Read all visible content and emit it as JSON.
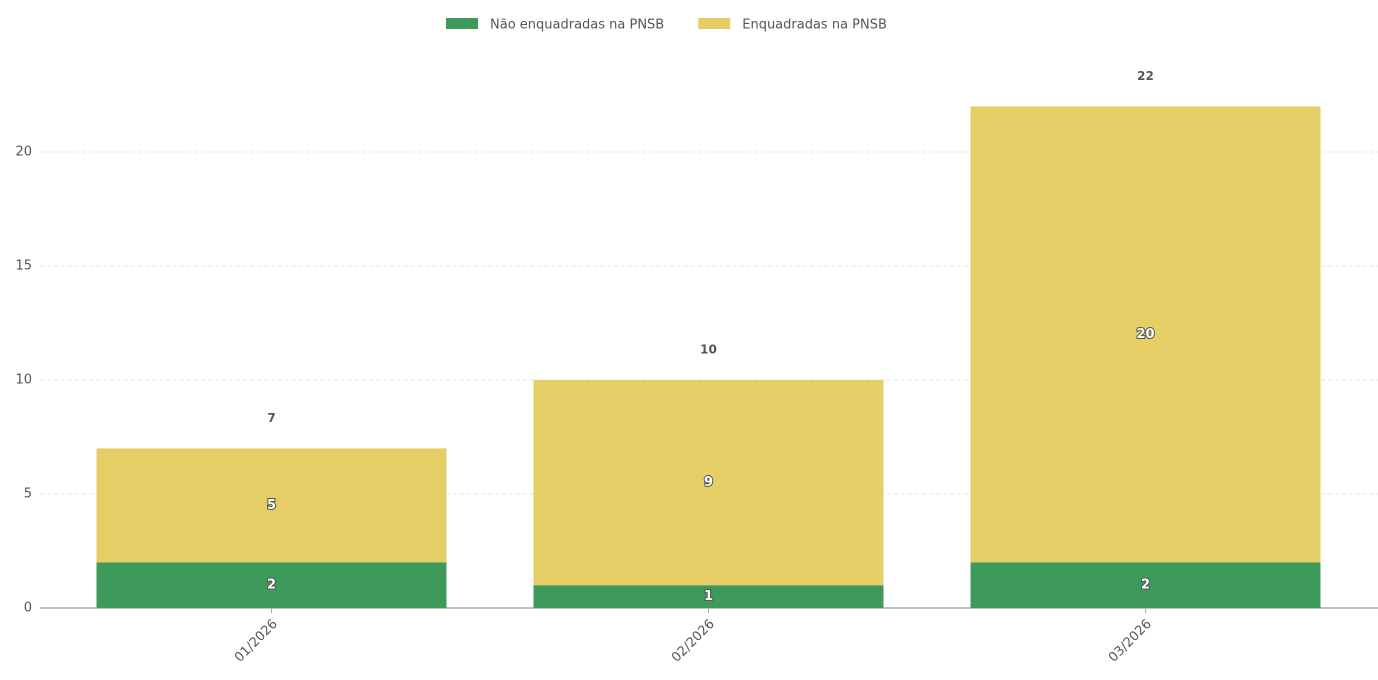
{
  "chart_data": {
    "type": "stacked_bar",
    "categories": [
      "01/2026",
      "02/2026",
      "03/2026"
    ],
    "series": [
      {
        "name": "Não enquadradas na PNSB",
        "color": "#3d9a5a",
        "values": [
          2,
          1,
          2
        ]
      },
      {
        "name": "Enquadradas na PNSB",
        "color": "#e4ce65",
        "values": [
          5,
          9,
          20
        ]
      }
    ],
    "totals": [
      7,
      10,
      22
    ],
    "ylim": [
      0,
      23
    ],
    "yticks": [
      0,
      5,
      10,
      15,
      20
    ],
    "grid": true,
    "legend": "top"
  }
}
